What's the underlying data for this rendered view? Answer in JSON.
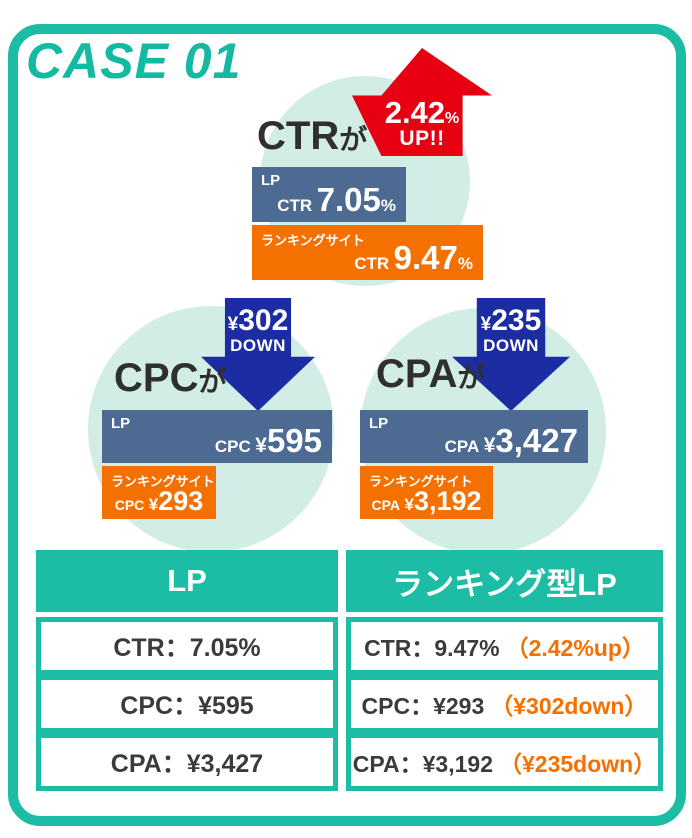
{
  "title": "CASE 01",
  "colors": {
    "teal": "#1dbca4",
    "light_teal_circle": "#d2ece6",
    "red_up": "#e60012",
    "blue_down": "#1c2da4",
    "slate_bar": "#4c6a92",
    "orange_bar": "#f47000",
    "dark_text": "#2f2f2f"
  },
  "sections": {
    "ctr": {
      "metric": "CTR",
      "suffix": "が",
      "badge": {
        "value": "2.42",
        "unit": "%",
        "label": "UP!!"
      },
      "lp": {
        "tag": "LP",
        "metric": "CTR",
        "value": "7.05",
        "unit": "%"
      },
      "ranking": {
        "tag": "ランキングサイト",
        "metric": "CTR",
        "value": "9.47",
        "unit": "%"
      }
    },
    "cpc": {
      "metric": "CPC",
      "suffix": "が",
      "badge": {
        "currency": "¥",
        "value": "302",
        "label": "DOWN"
      },
      "lp": {
        "tag": "LP",
        "metric": "CPC",
        "currency": "¥",
        "value": "595"
      },
      "ranking": {
        "tag": "ランキングサイト",
        "metric": "CPC",
        "currency": "¥",
        "value": "293"
      }
    },
    "cpa": {
      "metric": "CPA",
      "suffix": "が",
      "badge": {
        "currency": "¥",
        "value": "235",
        "label": "DOWN"
      },
      "lp": {
        "tag": "LP",
        "metric": "CPA",
        "currency": "¥",
        "value": "3,427"
      },
      "ranking": {
        "tag": "ランキングサイト",
        "metric": "CPA",
        "currency": "¥",
        "value": "3,192"
      }
    }
  },
  "table": {
    "headers": [
      "LP",
      "ランキング型LP"
    ],
    "rows": [
      {
        "lp": "CTR：7.05%",
        "ranking": "CTR：9.47%",
        "diff": "（2.42%up）"
      },
      {
        "lp": "CPC：¥595",
        "ranking": "CPC：¥293",
        "diff": "（¥302down）"
      },
      {
        "lp": "CPA：¥3,427",
        "ranking": "CPA：¥3,192",
        "diff": "（¥235down）"
      }
    ]
  },
  "chart_data": [
    {
      "type": "bar",
      "title": "CTRが 2.42% UP!!",
      "categories": [
        "LP",
        "ランキングサイト"
      ],
      "values": [
        7.05,
        9.47
      ],
      "unit": "%",
      "metric": "CTR",
      "change": "+2.42%"
    },
    {
      "type": "bar",
      "title": "CPCが ¥302 DOWN",
      "categories": [
        "LP",
        "ランキングサイト"
      ],
      "values": [
        595,
        293
      ],
      "unit": "¥",
      "metric": "CPC",
      "change": "-¥302"
    },
    {
      "type": "bar",
      "title": "CPAが ¥235 DOWN",
      "categories": [
        "LP",
        "ランキングサイト"
      ],
      "values": [
        3427,
        3192
      ],
      "unit": "¥",
      "metric": "CPA",
      "change": "-¥235"
    },
    {
      "type": "table",
      "columns": [
        "LP",
        "ランキング型LP"
      ],
      "rows": [
        [
          "CTR：7.05%",
          "CTR：9.47%（2.42%up）"
        ],
        [
          "CPC：¥595",
          "CPC：¥293（¥302down）"
        ],
        [
          "CPA：¥3,427",
          "CPA：¥3,192（¥235down）"
        ]
      ]
    }
  ]
}
